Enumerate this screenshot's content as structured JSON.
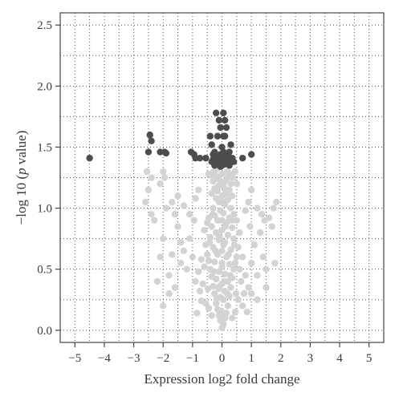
{
  "chart_data": {
    "type": "scatter",
    "title": "",
    "xlabel": "Expression log2 fold change",
    "ylabel_prefix": "−log 10 (",
    "ylabel_italic": "p",
    "ylabel_suffix": " value)",
    "xlim": [
      -5.5,
      5.5
    ],
    "ylim": [
      -0.1,
      2.6
    ],
    "xticks": [
      -5,
      -4,
      -3,
      -2,
      -1,
      0,
      1,
      2,
      3,
      4,
      5
    ],
    "xtick_labels": [
      "−5",
      "−4",
      "−3",
      "−2",
      "−1",
      "0",
      "1",
      "2",
      "3",
      "4",
      "5"
    ],
    "yticks": [
      0.0,
      0.5,
      1.0,
      1.5,
      2.0,
      2.5
    ],
    "ytick_labels": [
      "0.0",
      "0.5",
      "1.0",
      "1.5",
      "2.0",
      "2.5"
    ],
    "grid": true,
    "series": [
      {
        "color": "#d3d3d3",
        "points": [
          [
            0.0,
            0.02
          ],
          [
            0.05,
            0.05
          ],
          [
            -0.05,
            0.08
          ],
          [
            0.1,
            0.1
          ],
          [
            -0.1,
            0.12
          ],
          [
            0.0,
            0.15
          ],
          [
            0.15,
            0.14
          ],
          [
            -0.15,
            0.17
          ],
          [
            0.2,
            0.2
          ],
          [
            -0.2,
            0.22
          ],
          [
            0.05,
            0.25
          ],
          [
            -0.05,
            0.27
          ],
          [
            0.25,
            0.28
          ],
          [
            -0.25,
            0.3
          ],
          [
            0.1,
            0.32
          ],
          [
            -0.1,
            0.34
          ],
          [
            0.3,
            0.35
          ],
          [
            -0.3,
            0.36
          ],
          [
            0.0,
            0.38
          ],
          [
            0.2,
            0.4
          ],
          [
            -0.2,
            0.42
          ],
          [
            0.35,
            0.43
          ],
          [
            -0.35,
            0.44
          ],
          [
            0.1,
            0.46
          ],
          [
            -0.1,
            0.48
          ],
          [
            0.4,
            0.5
          ],
          [
            -0.4,
            0.5
          ],
          [
            0.0,
            0.52
          ],
          [
            0.25,
            0.54
          ],
          [
            -0.25,
            0.56
          ],
          [
            0.45,
            0.55
          ],
          [
            -0.45,
            0.57
          ],
          [
            0.15,
            0.6
          ],
          [
            -0.15,
            0.62
          ],
          [
            0.5,
            0.6
          ],
          [
            -0.5,
            0.62
          ],
          [
            0.0,
            0.65
          ],
          [
            0.3,
            0.66
          ],
          [
            -0.3,
            0.68
          ],
          [
            0.55,
            0.68
          ],
          [
            -0.55,
            0.7
          ],
          [
            0.1,
            0.72
          ],
          [
            -0.1,
            0.74
          ],
          [
            0.4,
            0.75
          ],
          [
            -0.4,
            0.76
          ],
          [
            0.2,
            0.78
          ],
          [
            -0.2,
            0.8
          ],
          [
            0.0,
            0.82
          ],
          [
            0.35,
            0.84
          ],
          [
            -0.35,
            0.85
          ],
          [
            0.15,
            0.88
          ],
          [
            -0.15,
            0.9
          ],
          [
            0.25,
            0.92
          ],
          [
            -0.25,
            0.94
          ],
          [
            0.05,
            0.96
          ],
          [
            -0.05,
            0.98
          ],
          [
            0.3,
            1.0
          ],
          [
            -0.3,
            1.0
          ],
          [
            0.1,
            1.03
          ],
          [
            -0.1,
            1.05
          ],
          [
            0.2,
            1.07
          ],
          [
            -0.2,
            1.08
          ],
          [
            0.0,
            1.1
          ],
          [
            0.15,
            1.12
          ],
          [
            -0.15,
            1.14
          ],
          [
            0.25,
            1.15
          ],
          [
            -0.25,
            1.16
          ],
          [
            0.05,
            1.18
          ],
          [
            -0.05,
            1.2
          ],
          [
            0.1,
            1.22
          ],
          [
            -0.1,
            1.24
          ],
          [
            0.2,
            1.25
          ],
          [
            -0.2,
            1.26
          ],
          [
            0.0,
            1.28
          ],
          [
            0.3,
            1.2
          ],
          [
            -0.3,
            1.22
          ],
          [
            0.35,
            1.1
          ],
          [
            -0.35,
            1.12
          ],
          [
            0.4,
            0.95
          ],
          [
            -0.45,
            0.92
          ],
          [
            0.6,
            0.5
          ],
          [
            -0.6,
            0.52
          ],
          [
            0.65,
            0.4
          ],
          [
            -0.65,
            0.38
          ],
          [
            0.7,
            0.6
          ],
          [
            -0.7,
            0.58
          ],
          [
            0.75,
            0.3
          ],
          [
            -0.75,
            0.32
          ],
          [
            0.6,
            0.8
          ],
          [
            -0.6,
            0.82
          ],
          [
            0.5,
            0.9
          ],
          [
            -0.5,
            0.88
          ],
          [
            0.8,
            0.45
          ],
          [
            -0.8,
            0.48
          ],
          [
            0.55,
            0.25
          ],
          [
            -0.55,
            0.22
          ],
          [
            0.45,
            0.15
          ],
          [
            -0.45,
            0.18
          ],
          [
            0.35,
            0.1
          ],
          [
            -0.35,
            0.12
          ],
          [
            0.7,
            0.2
          ],
          [
            -0.7,
            0.24
          ],
          [
            0.9,
            0.35
          ],
          [
            -0.9,
            0.4
          ],
          [
            1.0,
            0.55
          ],
          [
            -1.0,
            0.6
          ],
          [
            1.1,
            0.7
          ],
          [
            -1.1,
            0.75
          ],
          [
            1.2,
            0.45
          ],
          [
            -1.2,
            0.5
          ],
          [
            0.95,
            0.85
          ],
          [
            -0.95,
            0.9
          ],
          [
            1.3,
            0.8
          ],
          [
            -1.3,
            0.65
          ],
          [
            1.4,
            0.6
          ],
          [
            -1.4,
            0.72
          ],
          [
            1.5,
            0.5
          ],
          [
            -1.5,
            0.85
          ],
          [
            1.6,
            0.92
          ],
          [
            -1.6,
            0.95
          ],
          [
            1.7,
            0.85
          ],
          [
            -1.7,
            0.62
          ],
          [
            1.8,
            0.55
          ],
          [
            -1.8,
            0.45
          ],
          [
            -1.9,
            1.0
          ],
          [
            -2.0,
            0.75
          ],
          [
            -2.1,
            0.6
          ],
          [
            -2.2,
            0.4
          ],
          [
            1.75,
            1.0
          ],
          [
            1.85,
            1.05
          ],
          [
            -1.5,
            1.1
          ],
          [
            -1.7,
            1.05
          ],
          [
            -2.3,
            0.9
          ],
          [
            -2.4,
            1.25
          ],
          [
            -2.5,
            1.15
          ],
          [
            -2.6,
            1.05
          ],
          [
            -2.55,
            1.3
          ],
          [
            -2.0,
            1.3
          ],
          [
            -1.95,
            1.25
          ],
          [
            -2.1,
            1.2
          ],
          [
            -2.4,
            0.95
          ],
          [
            -1.3,
            1.02
          ],
          [
            -1.1,
            0.95
          ],
          [
            -0.9,
            1.08
          ],
          [
            -0.8,
            1.15
          ],
          [
            0.9,
            1.05
          ],
          [
            1.0,
            1.15
          ],
          [
            0.8,
            0.98
          ],
          [
            1.2,
            1.0
          ],
          [
            1.35,
            0.95
          ],
          [
            1.45,
            0.9
          ],
          [
            -1.4,
            0.55
          ],
          [
            -1.6,
            0.35
          ],
          [
            -1.8,
            0.3
          ],
          [
            -2.0,
            0.2
          ],
          [
            1.5,
            0.35
          ],
          [
            1.2,
            0.25
          ],
          [
            1.0,
            0.3
          ],
          [
            0.85,
            0.15
          ],
          [
            -0.85,
            0.14
          ],
          [
            0.0,
            0.55
          ],
          [
            0.05,
            0.7
          ],
          [
            -0.05,
            0.75
          ],
          [
            0.12,
            0.85
          ],
          [
            -0.12,
            0.78
          ],
          [
            0.22,
            0.62
          ],
          [
            -0.22,
            0.65
          ],
          [
            0.28,
            0.45
          ],
          [
            -0.28,
            0.48
          ],
          [
            0.08,
            0.4
          ],
          [
            -0.08,
            0.36
          ],
          [
            0.18,
            0.3
          ],
          [
            -0.18,
            0.26
          ],
          [
            0.02,
            1.05
          ],
          [
            0.32,
            0.9
          ],
          [
            -0.32,
            0.95
          ],
          [
            0.42,
            0.7
          ],
          [
            -0.42,
            0.72
          ],
          [
            0.48,
            0.3
          ],
          [
            -0.48,
            0.34
          ],
          [
            0.0,
            0.9
          ],
          [
            0.12,
            1.15
          ],
          [
            -0.12,
            1.18
          ],
          [
            0.28,
            1.28
          ],
          [
            -0.28,
            1.3
          ],
          [
            0.38,
            1.25
          ],
          [
            -0.38,
            1.27
          ],
          [
            0.45,
            1.3
          ],
          [
            -0.45,
            1.28
          ],
          [
            0.18,
            1.3
          ],
          [
            -0.18,
            1.32
          ],
          [
            0.5,
            1.2
          ]
        ]
      },
      {
        "color": "#4d4d4d",
        "points": [
          [
            -4.5,
            1.41
          ],
          [
            -2.45,
            1.6
          ],
          [
            -2.4,
            1.55
          ],
          [
            -2.5,
            1.46
          ],
          [
            -2.1,
            1.46
          ],
          [
            -1.95,
            1.46
          ],
          [
            -1.9,
            1.45
          ],
          [
            -1.05,
            1.46
          ],
          [
            -0.95,
            1.44
          ],
          [
            -0.75,
            1.41
          ],
          [
            -0.9,
            1.41
          ],
          [
            -0.55,
            1.41
          ],
          [
            1.0,
            1.44
          ],
          [
            0.7,
            1.41
          ],
          [
            -0.4,
            1.59
          ],
          [
            -0.35,
            1.52
          ],
          [
            -0.15,
            1.59
          ],
          [
            0.05,
            1.59
          ],
          [
            0.1,
            1.59
          ],
          [
            -0.1,
            1.72
          ],
          [
            0.1,
            1.72
          ],
          [
            -0.2,
            1.78
          ],
          [
            0.05,
            1.78
          ],
          [
            -0.05,
            1.66
          ],
          [
            0.15,
            1.66
          ],
          [
            -0.25,
            1.46
          ],
          [
            0.25,
            1.46
          ],
          [
            0.3,
            1.52
          ],
          [
            -0.3,
            1.44
          ],
          [
            0.35,
            1.41
          ],
          [
            0.4,
            1.38
          ],
          [
            -0.35,
            1.38
          ],
          [
            0.0,
            1.5
          ],
          [
            0.05,
            1.46
          ],
          [
            -0.05,
            1.44
          ],
          [
            0.1,
            1.42
          ],
          [
            -0.1,
            1.41
          ],
          [
            0.15,
            1.4
          ],
          [
            -0.15,
            1.38
          ],
          [
            0.2,
            1.37
          ],
          [
            -0.2,
            1.36
          ],
          [
            0.0,
            1.35
          ],
          [
            0.1,
            1.36
          ],
          [
            -0.05,
            1.34
          ],
          [
            0.25,
            1.35
          ],
          [
            -0.25,
            1.35
          ],
          [
            0.0,
            1.4
          ],
          [
            0.2,
            1.44
          ],
          [
            -0.2,
            1.42
          ],
          [
            0.3,
            1.38
          ],
          [
            -0.3,
            1.4
          ],
          [
            0.05,
            1.38
          ]
        ]
      }
    ]
  }
}
